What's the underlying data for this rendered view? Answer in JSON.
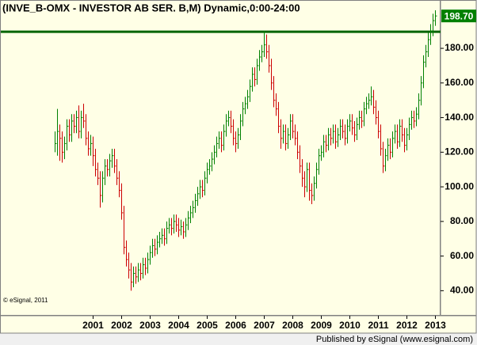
{
  "chart_data": {
    "type": "hlc-bar",
    "title": "(INVE_B-OMX - INVESTOR AB SER. B,M) Dynamic,0:00-24:00",
    "copyright": "© eSignal, 2011",
    "footer": "Published by eSignal (www.esignal.com)",
    "up_color": "#008000",
    "down_color": "#cc0000",
    "ylim": [
      26,
      207
    ],
    "yticks": [
      {
        "value": 40,
        "label": "40.00"
      },
      {
        "value": 60,
        "label": "60.00"
      },
      {
        "value": 80,
        "label": "80.00"
      },
      {
        "value": 100,
        "label": "100.00"
      },
      {
        "value": 120,
        "label": "120.00"
      },
      {
        "value": 140,
        "label": "140.00"
      },
      {
        "value": 160,
        "label": "160.00"
      },
      {
        "value": 180,
        "label": "180.00"
      }
    ],
    "last_price": {
      "value": 198.7,
      "label": "198.70",
      "color": "#008000"
    },
    "hline": {
      "value": 189.6,
      "color": "#006400"
    },
    "categories": [
      null,
      null,
      null,
      null,
      null,
      null,
      null,
      null,
      null,
      null,
      null,
      null,
      null,
      null,
      null,
      null,
      "2001",
      null,
      null,
      null,
      null,
      null,
      null,
      null,
      null,
      null,
      null,
      null,
      "2002",
      null,
      null,
      null,
      null,
      null,
      null,
      null,
      null,
      null,
      null,
      null,
      "2003",
      null,
      null,
      null,
      null,
      null,
      null,
      null,
      null,
      null,
      null,
      null,
      "2004",
      null,
      null,
      null,
      null,
      null,
      null,
      null,
      null,
      null,
      null,
      null,
      "2005",
      null,
      null,
      null,
      null,
      null,
      null,
      null,
      null,
      null,
      null,
      null,
      "2006",
      null,
      null,
      null,
      null,
      null,
      null,
      null,
      null,
      null,
      null,
      null,
      "2007",
      null,
      null,
      null,
      null,
      null,
      null,
      null,
      null,
      null,
      null,
      null,
      "2008",
      null,
      null,
      null,
      null,
      null,
      null,
      null,
      null,
      null,
      null,
      null,
      "2009",
      null,
      null,
      null,
      null,
      null,
      null,
      null,
      null,
      null,
      null,
      null,
      "2010",
      null,
      null,
      null,
      null,
      null,
      null,
      null,
      null,
      null,
      null,
      null,
      "2011",
      null,
      null,
      null,
      null,
      null,
      null,
      null,
      null,
      null,
      null,
      null,
      "2012",
      null,
      null,
      null,
      null,
      null,
      null,
      null,
      null,
      null,
      null,
      null,
      "2013"
    ],
    "high": [
      132,
      145,
      136,
      132,
      129,
      139,
      139,
      142,
      142,
      144,
      147,
      144,
      148,
      142,
      132,
      130,
      129,
      122,
      114,
      109,
      109,
      116,
      116,
      119,
      122,
      122,
      116,
      109,
      102,
      89,
      69,
      62,
      56,
      54,
      54,
      56,
      56,
      59,
      59,
      62,
      66,
      70,
      70,
      72,
      74,
      76,
      76,
      80,
      82,
      82,
      84,
      84,
      82,
      81,
      80,
      82,
      86,
      89,
      92,
      96,
      100,
      104,
      104,
      109,
      114,
      116,
      120,
      124,
      129,
      132,
      132,
      136,
      142,
      144,
      144,
      139,
      132,
      134,
      142,
      149,
      152,
      156,
      162,
      169,
      169,
      174,
      179,
      182,
      190,
      188,
      182,
      174,
      164,
      154,
      149,
      139,
      136,
      136,
      134,
      142,
      142,
      136,
      132,
      124,
      116,
      109,
      114,
      114,
      102,
      106,
      114,
      122,
      124,
      130,
      130,
      134,
      134,
      136,
      136,
      134,
      139,
      139,
      136,
      139,
      142,
      142,
      138,
      140,
      144,
      144,
      149,
      152,
      154,
      158,
      156,
      150,
      144,
      136,
      126,
      122,
      128,
      128,
      132,
      136,
      136,
      139,
      139,
      134,
      134,
      140,
      144,
      144,
      146,
      154,
      164,
      176,
      182,
      189,
      194,
      200,
      202
    ],
    "low": [
      120,
      118,
      115,
      114,
      116,
      121,
      126,
      126,
      131,
      131,
      128,
      128,
      134,
      124,
      118,
      118,
      112,
      106,
      101,
      88,
      91,
      101,
      106,
      106,
      111,
      108,
      101,
      94,
      81,
      61,
      54,
      47,
      40,
      42,
      44,
      45,
      46,
      47,
      49,
      50,
      55,
      59,
      60,
      61,
      65,
      67,
      66,
      67,
      73,
      72,
      73,
      74,
      71,
      72,
      70,
      71,
      75,
      79,
      82,
      85,
      89,
      93,
      94,
      95,
      102,
      107,
      109,
      113,
      117,
      122,
      120,
      121,
      129,
      135,
      131,
      124,
      120,
      122,
      127,
      135,
      142,
      145,
      149,
      155,
      158,
      159,
      167,
      172,
      175,
      174,
      166,
      156,
      146,
      141,
      131,
      122,
      125,
      121,
      122,
      127,
      128,
      124,
      116,
      108,
      100,
      94,
      97,
      92,
      90,
      92,
      99,
      107,
      115,
      117,
      120,
      121,
      124,
      125,
      122,
      123,
      127,
      128,
      124,
      125,
      132,
      130,
      126,
      127,
      133,
      134,
      135,
      142,
      145,
      147,
      142,
      136,
      128,
      118,
      108,
      109,
      115,
      116,
      117,
      125,
      122,
      123,
      126,
      120,
      121,
      127,
      133,
      134,
      135,
      139,
      147,
      157,
      169,
      175,
      182,
      187,
      193
    ],
    "close": [
      125,
      132,
      128,
      120,
      125,
      135,
      130,
      138,
      135,
      140,
      132,
      140,
      138,
      128,
      122,
      125,
      118,
      110,
      105,
      95,
      105,
      112,
      110,
      115,
      118,
      112,
      105,
      98,
      85,
      65,
      58,
      52,
      45,
      50,
      48,
      52,
      50,
      55,
      53,
      58,
      62,
      66,
      64,
      68,
      70,
      72,
      70,
      76,
      78,
      76,
      80,
      78,
      75,
      77,
      74,
      78,
      82,
      85,
      88,
      92,
      96,
      100,
      98,
      105,
      110,
      112,
      116,
      120,
      125,
      128,
      124,
      132,
      138,
      140,
      135,
      128,
      125,
      130,
      138,
      145,
      148,
      152,
      158,
      165,
      162,
      170,
      175,
      178,
      182,
      178,
      170,
      160,
      150,
      145,
      135,
      128,
      132,
      125,
      130,
      138,
      132,
      128,
      120,
      112,
      105,
      100,
      110,
      98,
      95,
      102,
      110,
      118,
      120,
      126,
      124,
      130,
      128,
      132,
      126,
      130,
      135,
      132,
      128,
      135,
      138,
      134,
      130,
      136,
      140,
      138,
      145,
      148,
      150,
      152,
      146,
      140,
      132,
      122,
      112,
      118,
      124,
      120,
      128,
      132,
      126,
      135,
      130,
      124,
      130,
      136,
      140,
      138,
      142,
      150,
      160,
      172,
      178,
      185,
      190,
      196,
      198.7
    ]
  }
}
